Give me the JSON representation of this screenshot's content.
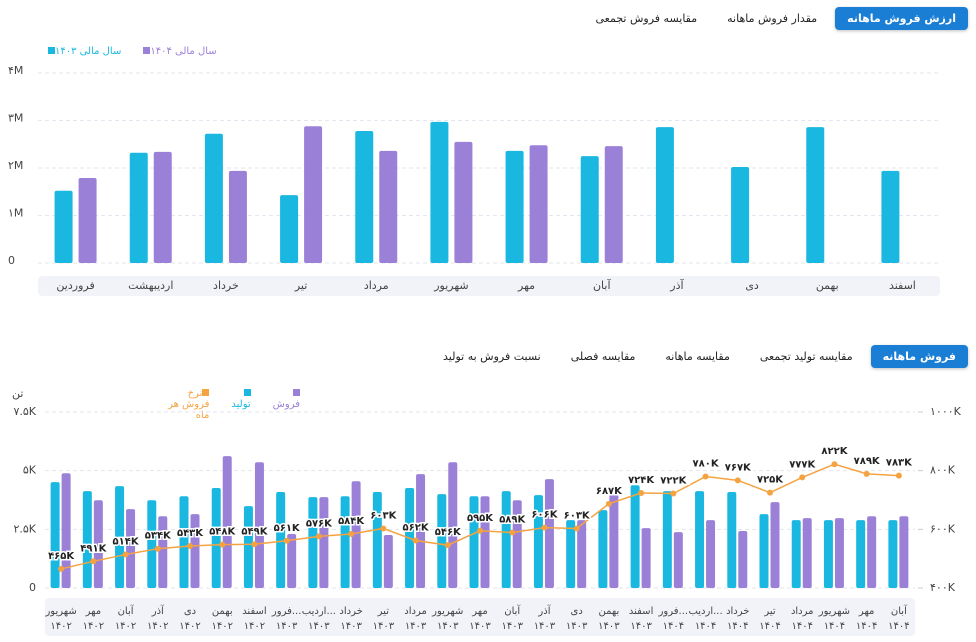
{
  "top_tabs": [
    "ارزش فروش ماهانه",
    "مقدار فروش ماهانه",
    "مقایسه فروش تجمعی"
  ],
  "bottom_tabs": [
    "فروش ماهانه",
    "مقایسه تولید تجمعی",
    "مقایسه ماهانه",
    "مقایسه فصلی",
    "نسبت فروش به تولید"
  ],
  "chart_data": [
    {
      "type": "bar",
      "categories": [
        "فروردین",
        "اردیبهشت",
        "خرداد",
        "تیر",
        "مرداد",
        "شهریور",
        "مهر",
        "آبان",
        "آذر",
        "دی",
        "بهمن",
        "اسفند"
      ],
      "series": [
        {
          "name": "سال مالی ۱۴۰۳",
          "color": "#1ab8e0",
          "values": [
            1520000,
            2320000,
            2720000,
            1430000,
            2780000,
            2970000,
            2360000,
            2250000,
            2860000,
            2020000,
            2860000,
            1940000
          ]
        },
        {
          "name": "سال مالی ۱۴۰۴",
          "color": "#9b80d8",
          "values": [
            1790000,
            2340000,
            1940000,
            2880000,
            2360000,
            2550000,
            2480000,
            2460000,
            null,
            null,
            null,
            null
          ]
        }
      ],
      "ylim": [
        0,
        4000000
      ],
      "yticks": [
        0,
        {
          "value": 1000000,
          "label": "۱M"
        },
        {
          "value": 2000000,
          "label": "۲M"
        },
        {
          "value": 3000000,
          "label": "۳M"
        },
        {
          "value": 4000000,
          "label": "۴M"
        }
      ],
      "grid": true
    },
    {
      "type": "combo",
      "y_axis_label": "تن",
      "categories": [
        "شهریور",
        "مهر",
        "آبان",
        "آذر",
        "دی",
        "بهمن",
        "اسفند",
        "فرور...",
        "اردیب...",
        "خرداد",
        "تیر",
        "مرداد",
        "شهریور",
        "مهر",
        "آبان",
        "آذر",
        "دی",
        "بهمن",
        "اسفند",
        "فرور...",
        "اردیب...",
        "خرداد",
        "تیر",
        "مرداد",
        "شهریور",
        "مهر",
        "آبان"
      ],
      "x_sublabels": [
        "۱۴۰۲",
        "۱۴۰۲",
        "۱۴۰۲",
        "۱۴۰۲",
        "۱۴۰۲",
        "۱۴۰۲",
        "۱۴۰۲",
        "۱۴۰۳",
        "۱۴۰۳",
        "۱۴۰۳",
        "۱۴۰۳",
        "۱۴۰۳",
        "۱۴۰۳",
        "۱۴۰۳",
        "۱۴۰۳",
        "۱۴۰۳",
        "۱۴۰۳",
        "۱۴۰۳",
        "۱۴۰۳",
        "۱۴۰۴",
        "۱۴۰۴",
        "۱۴۰۴",
        "۱۴۰۴",
        "۱۴۰۴",
        "۱۴۰۴",
        "۱۴۰۴",
        "۱۴۰۴"
      ],
      "series": [
        {
          "name": "فروش",
          "type": "bar",
          "color": "#9b80d8",
          "values": [
            4890,
            3740,
            3360,
            3060,
            3150,
            5620,
            5360,
            2300,
            3870,
            4550,
            2260,
            4850,
            5360,
            3910,
            3740,
            4640,
            2890,
            4000,
            2550,
            2380,
            2890,
            2430,
            3660,
            2980,
            2980,
            3060,
            3060
          ]
        },
        {
          "name": "تولید",
          "type": "bar",
          "color": "#1ab8e0",
          "values": [
            4510,
            4130,
            4340,
            3740,
            3910,
            4260,
            3490,
            4090,
            3870,
            3910,
            4090,
            4260,
            4000,
            3910,
            4130,
            3960,
            2890,
            3320,
            4380,
            4130,
            4130,
            4090,
            3150,
            2890,
            2890,
            2890,
            2890
          ]
        },
        {
          "name": "نرخ فروش هر ماه",
          "type": "line",
          "axis": "y2",
          "color": "#f5a340",
          "values": [
            465000,
            491000,
            514000,
            534000,
            543000,
            548000,
            549000,
            561000,
            576000,
            584000,
            603000,
            562000,
            546000,
            595000,
            589000,
            606000,
            603000,
            687000,
            724000,
            722000,
            780000,
            767000,
            725000,
            777000,
            822000,
            789000,
            783000
          ],
          "value_labels": [
            "۴۶۵K",
            "۴۹۱K",
            "۵۱۴K",
            "۵۳۴K",
            "۵۴۳K",
            "۵۴۸K",
            "۵۴۹K",
            "۵۶۱K",
            "۵۷۶K",
            "۵۸۴K",
            "۶۰۳K",
            "۵۶۲K",
            "۵۴۶K",
            "۵۹۵K",
            "۵۸۹K",
            "۶۰۶K",
            "۶۰۳K",
            "۶۸۷K",
            "۷۲۴K",
            "۷۲۲K",
            "۷۸۰K",
            "۷۶۷K",
            "۷۲۵K",
            "۷۷۷K",
            "۸۲۲K",
            "۷۸۹K",
            "۷۸۳K"
          ]
        }
      ],
      "ylim": [
        0,
        7500
      ],
      "yticks": [
        0,
        {
          "value": 2500,
          "label": "۲.۵K"
        },
        {
          "value": 5000,
          "label": "۵K"
        },
        {
          "value": 7500,
          "label": "۷.۵K"
        }
      ],
      "y2lim": [
        400000,
        1000000
      ],
      "y2ticks": [
        {
          "value": 400000,
          "label": "۴۰۰K"
        },
        {
          "value": 600000,
          "label": "۶۰۰K"
        },
        {
          "value": 800000,
          "label": "۸۰۰K"
        },
        {
          "value": 1000000,
          "label": "۱۰۰۰K"
        }
      ],
      "grid": true
    }
  ]
}
